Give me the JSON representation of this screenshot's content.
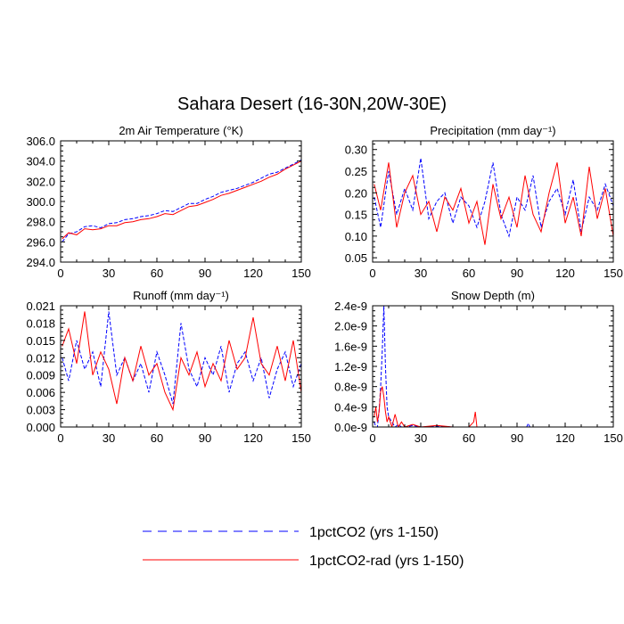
{
  "figure": {
    "title": "Sahara Desert (16-30N,20W-30E)"
  },
  "legend": {
    "placement": "bottom-center",
    "entries": [
      {
        "label": "1pctCO2 (yrs 1-150)",
        "color": "#0000ff",
        "dash": "dashed"
      },
      {
        "label": "1pctCO2-rad (yrs 1-150)",
        "color": "#ff0000",
        "dash": "solid"
      }
    ]
  },
  "chart_data": [
    {
      "type": "line",
      "title": "2m Air Temperature (°K)",
      "xlabel": "",
      "ylabel": "",
      "xlim": [
        0,
        150
      ],
      "ylim": [
        294.0,
        306.0
      ],
      "xticks": [
        0,
        30,
        60,
        90,
        120,
        150
      ],
      "xtick_labels": [
        "0",
        "30",
        "60",
        "90",
        "120",
        "150"
      ],
      "yticks": [
        294.0,
        296.0,
        298.0,
        300.0,
        302.0,
        304.0,
        306.0
      ],
      "ytick_labels": [
        "294.0",
        "296.0",
        "298.0",
        "300.0",
        "302.0",
        "304.0",
        "306.0"
      ],
      "grid": false,
      "series": [
        {
          "name": "1pctCO2 (yrs 1-150)",
          "color": "#0000ff",
          "dash": "dashed",
          "x": [
            1,
            5,
            10,
            15,
            20,
            25,
            30,
            35,
            40,
            45,
            50,
            55,
            60,
            65,
            70,
            75,
            80,
            85,
            90,
            95,
            100,
            105,
            110,
            115,
            120,
            125,
            130,
            135,
            140,
            145,
            150
          ],
          "values": [
            296.0,
            296.8,
            297.0,
            297.5,
            297.6,
            297.4,
            297.8,
            297.9,
            298.2,
            298.3,
            298.5,
            298.6,
            298.8,
            299.1,
            299.0,
            299.4,
            299.8,
            299.8,
            300.2,
            300.5,
            300.9,
            301.1,
            301.3,
            301.6,
            301.9,
            302.3,
            302.7,
            302.9,
            303.3,
            303.7,
            304.1
          ]
        },
        {
          "name": "1pctCO2-rad (yrs 1-150)",
          "color": "#ff0000",
          "dash": "solid",
          "x": [
            1,
            5,
            10,
            15,
            20,
            25,
            30,
            35,
            40,
            45,
            50,
            55,
            60,
            65,
            70,
            75,
            80,
            85,
            90,
            95,
            100,
            105,
            110,
            115,
            120,
            125,
            130,
            135,
            140,
            145,
            150
          ],
          "values": [
            296.3,
            296.9,
            296.7,
            297.3,
            297.2,
            297.3,
            297.6,
            297.6,
            297.9,
            298.0,
            298.2,
            298.3,
            298.5,
            298.8,
            298.7,
            299.1,
            299.5,
            299.6,
            299.9,
            300.2,
            300.6,
            300.8,
            301.1,
            301.4,
            301.7,
            302.0,
            302.4,
            302.7,
            303.2,
            303.6,
            304.0
          ]
        }
      ]
    },
    {
      "type": "line",
      "title": "Precipitation (mm day⁻¹)",
      "xlabel": "",
      "ylabel": "",
      "xlim": [
        0,
        150
      ],
      "ylim": [
        0.04,
        0.32
      ],
      "xticks": [
        0,
        30,
        60,
        90,
        120,
        150
      ],
      "xtick_labels": [
        "0",
        "30",
        "60",
        "90",
        "120",
        "150"
      ],
      "yticks": [
        0.05,
        0.1,
        0.15,
        0.2,
        0.25,
        0.3
      ],
      "ytick_labels": [
        "0.05",
        "0.10",
        "0.15",
        "0.20",
        "0.25",
        "0.30"
      ],
      "grid": false,
      "series": [
        {
          "name": "1pctCO2 (yrs 1-150)",
          "color": "#0000ff",
          "dash": "dashed",
          "x": [
            1,
            5,
            10,
            15,
            20,
            25,
            30,
            35,
            40,
            45,
            50,
            55,
            60,
            65,
            70,
            75,
            80,
            85,
            90,
            95,
            100,
            105,
            110,
            115,
            120,
            125,
            130,
            135,
            140,
            145,
            150
          ],
          "values": [
            0.19,
            0.12,
            0.25,
            0.15,
            0.21,
            0.16,
            0.28,
            0.14,
            0.18,
            0.2,
            0.13,
            0.19,
            0.17,
            0.12,
            0.18,
            0.27,
            0.15,
            0.1,
            0.19,
            0.16,
            0.24,
            0.12,
            0.18,
            0.21,
            0.15,
            0.23,
            0.11,
            0.19,
            0.16,
            0.22,
            0.17
          ]
        },
        {
          "name": "1pctCO2-rad (yrs 1-150)",
          "color": "#ff0000",
          "dash": "solid",
          "x": [
            1,
            5,
            10,
            15,
            20,
            25,
            30,
            35,
            40,
            45,
            50,
            55,
            60,
            65,
            70,
            75,
            80,
            85,
            90,
            95,
            100,
            105,
            110,
            115,
            120,
            125,
            130,
            135,
            140,
            145,
            150
          ],
          "values": [
            0.22,
            0.16,
            0.27,
            0.12,
            0.2,
            0.24,
            0.15,
            0.18,
            0.11,
            0.19,
            0.16,
            0.21,
            0.13,
            0.18,
            0.08,
            0.22,
            0.14,
            0.19,
            0.12,
            0.24,
            0.15,
            0.11,
            0.2,
            0.27,
            0.13,
            0.19,
            0.1,
            0.26,
            0.14,
            0.21,
            0.1
          ]
        }
      ]
    },
    {
      "type": "line",
      "title": "Runoff (mm day⁻¹)",
      "xlabel": "",
      "ylabel": "",
      "xlim": [
        0,
        150
      ],
      "ylim": [
        0.0,
        0.021
      ],
      "xticks": [
        0,
        30,
        60,
        90,
        120,
        150
      ],
      "xtick_labels": [
        "0",
        "30",
        "60",
        "90",
        "120",
        "150"
      ],
      "yticks": [
        0.0,
        0.003,
        0.006,
        0.009,
        0.012,
        0.015,
        0.018,
        0.021
      ],
      "ytick_labels": [
        "0.000",
        "0.003",
        "0.006",
        "0.009",
        "0.012",
        "0.015",
        "0.018",
        "0.021"
      ],
      "grid": false,
      "series": [
        {
          "name": "1pctCO2 (yrs 1-150)",
          "color": "#0000ff",
          "dash": "dashed",
          "x": [
            1,
            5,
            10,
            15,
            20,
            25,
            30,
            35,
            40,
            45,
            50,
            55,
            60,
            65,
            70,
            75,
            80,
            85,
            90,
            95,
            100,
            105,
            110,
            115,
            120,
            125,
            130,
            135,
            140,
            145,
            150
          ],
          "values": [
            0.012,
            0.008,
            0.015,
            0.01,
            0.013,
            0.007,
            0.02,
            0.009,
            0.012,
            0.008,
            0.011,
            0.006,
            0.013,
            0.009,
            0.004,
            0.018,
            0.01,
            0.007,
            0.012,
            0.009,
            0.014,
            0.006,
            0.011,
            0.013,
            0.008,
            0.012,
            0.005,
            0.01,
            0.013,
            0.007,
            0.011
          ]
        },
        {
          "name": "1pctCO2-rad (yrs 1-150)",
          "color": "#ff0000",
          "dash": "solid",
          "x": [
            1,
            5,
            10,
            15,
            20,
            25,
            30,
            35,
            40,
            45,
            50,
            55,
            60,
            65,
            70,
            75,
            80,
            85,
            90,
            95,
            100,
            105,
            110,
            115,
            120,
            125,
            130,
            135,
            140,
            145,
            150
          ],
          "values": [
            0.014,
            0.017,
            0.011,
            0.02,
            0.009,
            0.013,
            0.01,
            0.004,
            0.012,
            0.008,
            0.014,
            0.009,
            0.011,
            0.006,
            0.003,
            0.012,
            0.009,
            0.013,
            0.007,
            0.011,
            0.008,
            0.015,
            0.01,
            0.012,
            0.019,
            0.011,
            0.009,
            0.014,
            0.008,
            0.015,
            0.006
          ]
        }
      ]
    },
    {
      "type": "line",
      "title": "Snow Depth (m)",
      "xlabel": "",
      "ylabel": "",
      "xlim": [
        0,
        150
      ],
      "ylim": [
        0.0,
        2.4e-09
      ],
      "xticks": [
        0,
        30,
        60,
        90,
        120,
        150
      ],
      "xtick_labels": [
        "0",
        "30",
        "60",
        "90",
        "120",
        "150"
      ],
      "yticks": [
        0.0,
        4e-10,
        8e-10,
        1.2e-09,
        1.6e-09,
        2e-09,
        2.4e-09
      ],
      "ytick_labels": [
        "0.0e-9",
        "0.4e-9",
        "0.8e-9",
        "1.2e-9",
        "1.6e-9",
        "2.0e-9",
        "2.4e-9"
      ],
      "grid": false,
      "series": [
        {
          "name": "1pctCO2 (yrs 1-150)",
          "color": "#0000ff",
          "dash": "dashed",
          "x": [
            1,
            2,
            3,
            4,
            5,
            6,
            7,
            8,
            9,
            10,
            12,
            14,
            16,
            18,
            20,
            25,
            30,
            40,
            50,
            60,
            70,
            80,
            90,
            96,
            97,
            98,
            100,
            120,
            150
          ],
          "values": [
            1e-10,
            0,
            0,
            3e-10,
            8e-10,
            1.5e-09,
            2.4e-09,
            1.2e-09,
            4e-10,
            2e-10,
            1e-10,
            0,
            5e-11,
            0,
            0,
            3e-11,
            0,
            2e-11,
            0,
            0,
            0,
            0,
            0,
            0,
            7e-11,
            0,
            0,
            0,
            0
          ]
        },
        {
          "name": "1pctCO2-rad (yrs 1-150)",
          "color": "#ff0000",
          "dash": "solid",
          "x": [
            1,
            2,
            3,
            4,
            5,
            6,
            7,
            8,
            9,
            10,
            12,
            14,
            16,
            18,
            20,
            25,
            30,
            40,
            50,
            60,
            63,
            64,
            65,
            70,
            90,
            120,
            150
          ],
          "values": [
            2e-10,
            4e-10,
            1e-10,
            3e-10,
            7e-10,
            8e-10,
            6e-10,
            3e-10,
            1e-10,
            2e-10,
            0,
            2.5e-10,
            0,
            1e-10,
            0,
            5e-11,
            0,
            3e-11,
            0,
            0,
            1e-10,
            3e-10,
            0,
            0,
            0,
            0,
            0
          ]
        }
      ]
    }
  ]
}
